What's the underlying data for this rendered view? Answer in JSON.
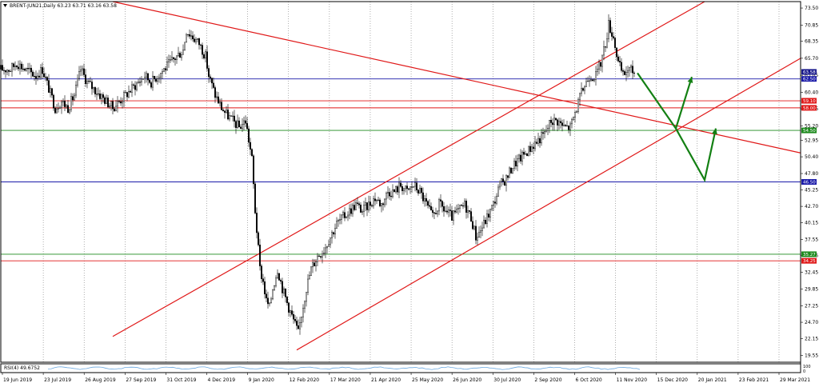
{
  "header": {
    "symbol_line": "BRENT-JUN21,Daily  63.23 63.71 63.16 63.58"
  },
  "indicator": {
    "label": "RSI(4) 49.6752",
    "scale_top": "100",
    "scale_bottom": "0"
  },
  "chart_data": {
    "type": "candlestick",
    "instrument": "BRENT-JUN21",
    "timeframe": "Daily",
    "ohlc_last": {
      "open": 63.23,
      "high": 63.71,
      "low": 63.16,
      "close": 63.58
    },
    "y_ticks": [
      "73.50",
      "70.85",
      "68.35",
      "65.70",
      "63.05",
      "60.40",
      "57.85",
      "55.20",
      "52.95",
      "50.40",
      "47.80",
      "45.25",
      "42.70",
      "40.15",
      "37.55",
      "35.05",
      "32.45",
      "29.85",
      "27.25",
      "24.70",
      "22.15",
      "19.55"
    ],
    "x_ticks": [
      "19 Jun 2019",
      "23 Jul 2019",
      "26 Aug 2019",
      "27 Sep 2019",
      "31 Oct 2019",
      "4 Dec 2019",
      "9 Jan 2020",
      "12 Feb 2020",
      "17 Mar 2020",
      "21 Apr 2020",
      "25 May 2020",
      "26 Jun 2020",
      "30 Jul 2020",
      "2 Sep 2020",
      "6 Oct 2020",
      "11 Nov 2020",
      "15 Dec 2020",
      "20 Jan 2021",
      "23 Feb 2021",
      "29 Mar 2021"
    ],
    "ylim": [
      18.5,
      74.5
    ],
    "x_index_range": [
      0,
      500
    ],
    "horizontal_levels": [
      {
        "label": "63.58",
        "value": 63.58,
        "color": "#16168a",
        "kind": "price"
      },
      {
        "label": "62.50",
        "value": 62.5,
        "color": "#1a1aa8",
        "kind": "level"
      },
      {
        "label": "59.10",
        "value": 59.1,
        "color": "#e01818",
        "kind": "level"
      },
      {
        "label": "58.00",
        "value": 58.0,
        "color": "#e01818",
        "kind": "level"
      },
      {
        "label": "54.50",
        "value": 54.5,
        "color": "#1d8a1d",
        "kind": "level"
      },
      {
        "label": "46.50",
        "value": 46.5,
        "color": "#1a1aa8",
        "kind": "level"
      },
      {
        "label": "35.27",
        "value": 35.27,
        "color": "#1d8a1d",
        "kind": "level"
      },
      {
        "label": "34.25",
        "value": 34.25,
        "color": "#e01818",
        "kind": "level"
      }
    ],
    "trendlines": [
      {
        "name": "descending",
        "color": "#e01818",
        "points": [
          [
            70,
            74.5
          ],
          [
            500,
            51.0
          ]
        ]
      },
      {
        "name": "channel-upper",
        "color": "#e01818",
        "points": [
          [
            70,
            22.5
          ],
          [
            440,
            74.5
          ]
        ]
      },
      {
        "name": "channel-lower",
        "color": "#e01818",
        "points": [
          [
            185,
            20.4
          ],
          [
            500,
            65.7
          ]
        ]
      }
    ],
    "projections": [
      {
        "name": "scenario-a",
        "color": "#138013",
        "points": [
          [
            398,
            63.4
          ],
          [
            422,
            54.8
          ],
          [
            432,
            62.8
          ]
        ]
      },
      {
        "name": "scenario-b",
        "color": "#138013",
        "points": [
          [
            422,
            54.8
          ],
          [
            440,
            46.8
          ],
          [
            447,
            54.8
          ]
        ]
      }
    ],
    "price_path": [
      [
        0,
        64
      ],
      [
        6,
        64
      ],
      [
        10,
        65
      ],
      [
        15,
        64
      ],
      [
        22,
        63
      ],
      [
        26,
        64
      ],
      [
        30,
        61
      ],
      [
        34,
        58
      ],
      [
        38,
        59
      ],
      [
        42,
        58
      ],
      [
        46,
        60
      ],
      [
        50,
        64
      ],
      [
        54,
        62
      ],
      [
        58,
        61
      ],
      [
        62,
        60
      ],
      [
        66,
        59
      ],
      [
        70,
        58
      ],
      [
        74,
        59
      ],
      [
        78,
        60
      ],
      [
        82,
        61
      ],
      [
        86,
        62
      ],
      [
        90,
        63
      ],
      [
        94,
        62
      ],
      [
        98,
        63
      ],
      [
        102,
        64
      ],
      [
        106,
        65
      ],
      [
        110,
        66
      ],
      [
        114,
        67
      ],
      [
        116,
        70
      ],
      [
        120,
        69
      ],
      [
        124,
        68
      ],
      [
        128,
        66
      ],
      [
        130,
        63
      ],
      [
        134,
        60
      ],
      [
        138,
        58
      ],
      [
        141,
        57
      ],
      [
        145,
        56
      ],
      [
        149,
        55
      ],
      [
        153,
        56
      ],
      [
        157,
        50
      ],
      [
        158,
        46
      ],
      [
        159,
        42
      ],
      [
        160,
        39
      ],
      [
        162,
        33
      ],
      [
        164,
        31
      ],
      [
        166,
        28
      ],
      [
        168,
        27
      ],
      [
        170,
        30
      ],
      [
        173,
        33
      ],
      [
        176,
        30
      ],
      [
        180,
        27
      ],
      [
        183,
        25
      ],
      [
        186,
        23
      ],
      [
        188,
        26
      ],
      [
        191,
        30
      ],
      [
        194,
        33
      ],
      [
        198,
        35
      ],
      [
        202,
        36
      ],
      [
        206,
        38
      ],
      [
        210,
        40
      ],
      [
        214,
        41
      ],
      [
        218,
        42
      ],
      [
        222,
        43
      ],
      [
        226,
        42
      ],
      [
        230,
        43
      ],
      [
        234,
        44
      ],
      [
        238,
        43
      ],
      [
        242,
        45
      ],
      [
        246,
        45
      ],
      [
        250,
        46
      ],
      [
        254,
        45
      ],
      [
        258,
        46
      ],
      [
        262,
        45
      ],
      [
        266,
        43
      ],
      [
        270,
        41
      ],
      [
        274,
        43
      ],
      [
        278,
        42
      ],
      [
        282,
        41
      ],
      [
        286,
        42
      ],
      [
        290,
        43
      ],
      [
        294,
        41
      ],
      [
        297,
        38
      ],
      [
        300,
        39
      ],
      [
        304,
        41
      ],
      [
        308,
        43
      ],
      [
        312,
        46
      ],
      [
        316,
        47
      ],
      [
        320,
        49
      ],
      [
        324,
        50
      ],
      [
        328,
        51
      ],
      [
        332,
        52
      ],
      [
        336,
        53
      ],
      [
        340,
        54
      ],
      [
        344,
        56
      ],
      [
        348,
        56
      ],
      [
        352,
        55
      ],
      [
        356,
        55
      ],
      [
        360,
        58
      ],
      [
        364,
        61
      ],
      [
        368,
        63
      ],
      [
        372,
        63
      ],
      [
        375,
        65
      ],
      [
        378,
        68
      ],
      [
        380,
        71
      ],
      [
        383,
        69
      ],
      [
        386,
        65
      ],
      [
        389,
        63
      ],
      [
        392,
        64
      ],
      [
        396,
        63.58
      ]
    ]
  }
}
